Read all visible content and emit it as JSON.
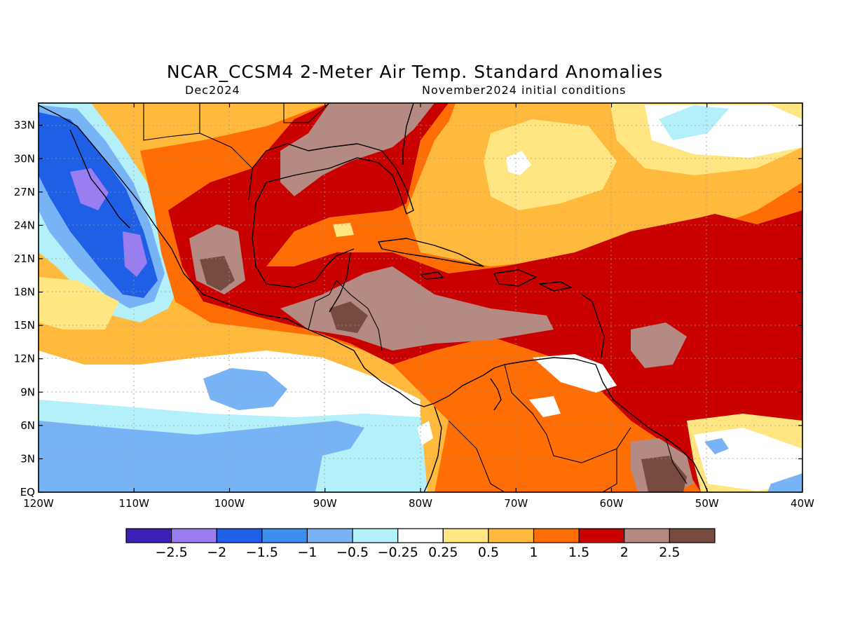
{
  "title": "NCAR_CCSM4 2-Meter Air Temp. Standard Anomalies",
  "valid_month": "Dec2024",
  "init_conditions": "November2024 initial conditions",
  "map": {
    "lon_range": [
      -120,
      -40
    ],
    "lat_range": [
      0,
      35
    ],
    "lon_ticks": [
      {
        "value": -120,
        "label": "120W"
      },
      {
        "value": -110,
        "label": "110W"
      },
      {
        "value": -100,
        "label": "100W"
      },
      {
        "value": -90,
        "label": "90W"
      },
      {
        "value": -80,
        "label": "80W"
      },
      {
        "value": -70,
        "label": "70W"
      },
      {
        "value": -60,
        "label": "60W"
      },
      {
        "value": -50,
        "label": "50W"
      },
      {
        "value": -40,
        "label": "40W"
      }
    ],
    "lat_ticks": [
      {
        "value": 0,
        "label": "EQ"
      },
      {
        "value": 3,
        "label": "3N"
      },
      {
        "value": 6,
        "label": "6N"
      },
      {
        "value": 9,
        "label": "9N"
      },
      {
        "value": 12,
        "label": "12N"
      },
      {
        "value": 15,
        "label": "15N"
      },
      {
        "value": 18,
        "label": "18N"
      },
      {
        "value": 21,
        "label": "21N"
      },
      {
        "value": 24,
        "label": "24N"
      },
      {
        "value": 27,
        "label": "27N"
      },
      {
        "value": 30,
        "label": "30N"
      },
      {
        "value": 33,
        "label": "33N"
      }
    ],
    "grid": true
  },
  "colorbar": {
    "colors": [
      "#3c1fb4",
      "#9b7df2",
      "#1f5fe6",
      "#3c8ef0",
      "#78b4f5",
      "#b4f0fa",
      "#ffffff",
      "#ffe682",
      "#ffb93c",
      "#ff6e05",
      "#c80000",
      "#b48a82",
      "#784b41"
    ],
    "labels": [
      "-2.5",
      "-2",
      "-1.5",
      "-1",
      "-0.5",
      "-0.25",
      "0.25",
      "0.5",
      "1",
      "1.5",
      "2",
      "2.5"
    ]
  }
}
